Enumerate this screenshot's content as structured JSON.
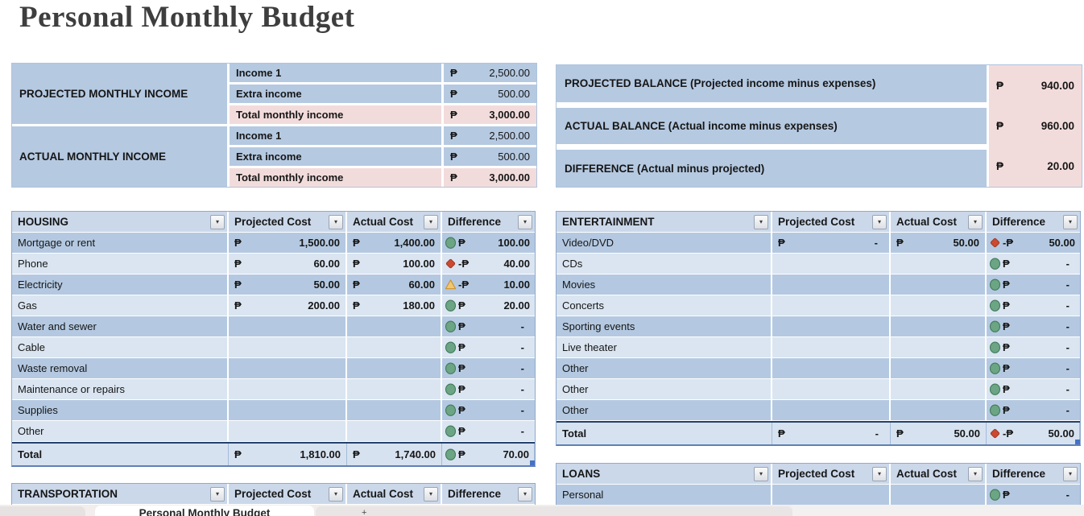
{
  "title": "Personal Monthly Budget",
  "currency_symbol": "₱",
  "colors": {
    "band_dark": "#b4c9e1",
    "band_light": "#dae5f1",
    "header_blue": "#cbd8ea",
    "total_row": "#d7e2f0",
    "summary_pink": "#f2dcdb",
    "total_border": "#24416b",
    "icon_green": "#6ba583",
    "icon_red": "#cc4a31",
    "icon_yellow": "#f2c772"
  },
  "income_summary": {
    "groups": [
      {
        "label": "PROJECTED MONTHLY INCOME",
        "rows": [
          {
            "item": "Income 1",
            "value": "2,500.00",
            "is_total": false
          },
          {
            "item": "Extra income",
            "value": "500.00",
            "is_total": false
          },
          {
            "item": "Total monthly income",
            "value": "3,000.00",
            "is_total": true
          }
        ]
      },
      {
        "label": "ACTUAL MONTHLY INCOME",
        "rows": [
          {
            "item": "Income 1",
            "value": "2,500.00",
            "is_total": false
          },
          {
            "item": "Extra income",
            "value": "500.00",
            "is_total": false
          },
          {
            "item": "Total monthly income",
            "value": "3,000.00",
            "is_total": true
          }
        ]
      }
    ]
  },
  "balance_summary": {
    "rows": [
      {
        "label": "PROJECTED BALANCE (Projected income minus expenses)",
        "value": "940.00"
      },
      {
        "label": "ACTUAL BALANCE (Actual income minus expenses)",
        "value": "960.00"
      },
      {
        "label": "DIFFERENCE (Actual minus projected)",
        "value": "20.00"
      }
    ]
  },
  "expense_columns": [
    "Projected Cost",
    "Actual Cost",
    "Difference"
  ],
  "expense_tables": [
    {
      "name": "HOUSING",
      "side": "left",
      "rows": [
        {
          "item": "Mortgage or rent",
          "projected": "1,500.00",
          "actual": "1,400.00",
          "icon": "green-circle",
          "diff_sign": "",
          "diff": "100.00"
        },
        {
          "item": "Phone",
          "projected": "60.00",
          "actual": "100.00",
          "icon": "red-diamond",
          "diff_sign": "-",
          "diff": "40.00"
        },
        {
          "item": "Electricity",
          "projected": "50.00",
          "actual": "60.00",
          "icon": "yellow-triangle",
          "diff_sign": "-",
          "diff": "10.00"
        },
        {
          "item": "Gas",
          "projected": "200.00",
          "actual": "180.00",
          "icon": "green-circle",
          "diff_sign": "",
          "diff": "20.00"
        },
        {
          "item": "Water and sewer",
          "projected": "",
          "actual": "",
          "icon": "green-circle",
          "diff_sign": "",
          "diff": "-"
        },
        {
          "item": "Cable",
          "projected": "",
          "actual": "",
          "icon": "green-circle",
          "diff_sign": "",
          "diff": "-"
        },
        {
          "item": "Waste removal",
          "projected": "",
          "actual": "",
          "icon": "green-circle",
          "diff_sign": "",
          "diff": "-"
        },
        {
          "item": "Maintenance or repairs",
          "projected": "",
          "actual": "",
          "icon": "green-circle",
          "diff_sign": "",
          "diff": "-"
        },
        {
          "item": "Supplies",
          "projected": "",
          "actual": "",
          "icon": "green-circle",
          "diff_sign": "",
          "diff": "-"
        },
        {
          "item": "Other",
          "projected": "",
          "actual": "",
          "icon": "green-circle",
          "diff_sign": "",
          "diff": "-"
        }
      ],
      "total": {
        "item": "Total",
        "projected": "1,810.00",
        "actual": "1,740.00",
        "icon": "green-circle",
        "diff_sign": "",
        "diff": "70.00"
      }
    },
    {
      "name": "ENTERTAINMENT",
      "side": "right",
      "rows": [
        {
          "item": "Video/DVD",
          "projected": "-",
          "actual": "50.00",
          "icon": "red-diamond",
          "diff_sign": "-",
          "diff": "50.00"
        },
        {
          "item": "CDs",
          "projected": "",
          "actual": "",
          "icon": "green-circle",
          "diff_sign": "",
          "diff": "-"
        },
        {
          "item": "Movies",
          "projected": "",
          "actual": "",
          "icon": "green-circle",
          "diff_sign": "",
          "diff": "-"
        },
        {
          "item": "Concerts",
          "projected": "",
          "actual": "",
          "icon": "green-circle",
          "diff_sign": "",
          "diff": "-"
        },
        {
          "item": "Sporting events",
          "projected": "",
          "actual": "",
          "icon": "green-circle",
          "diff_sign": "",
          "diff": "-"
        },
        {
          "item": "Live theater",
          "projected": "",
          "actual": "",
          "icon": "green-circle",
          "diff_sign": "",
          "diff": "-"
        },
        {
          "item": "Other",
          "projected": "",
          "actual": "",
          "icon": "green-circle",
          "diff_sign": "",
          "diff": "-"
        },
        {
          "item": "Other",
          "projected": "",
          "actual": "",
          "icon": "green-circle",
          "diff_sign": "",
          "diff": "-"
        },
        {
          "item": "Other",
          "projected": "",
          "actual": "",
          "icon": "green-circle",
          "diff_sign": "",
          "diff": "-"
        }
      ],
      "total": {
        "item": "Total",
        "projected": "-",
        "actual": "50.00",
        "icon": "red-diamond",
        "diff_sign": "-",
        "diff": "50.00"
      }
    },
    {
      "name": "TRANSPORTATION",
      "side": "left",
      "rows": [],
      "total": null
    },
    {
      "name": "LOANS",
      "side": "right",
      "rows": [
        {
          "item": "Personal",
          "projected": "",
          "actual": "",
          "icon": "green-circle",
          "diff_sign": "",
          "diff": "-"
        }
      ],
      "total": null
    }
  ],
  "sheet_tabs": {
    "active": "Personal Monthly Budget",
    "new_sheet_label": "+"
  }
}
